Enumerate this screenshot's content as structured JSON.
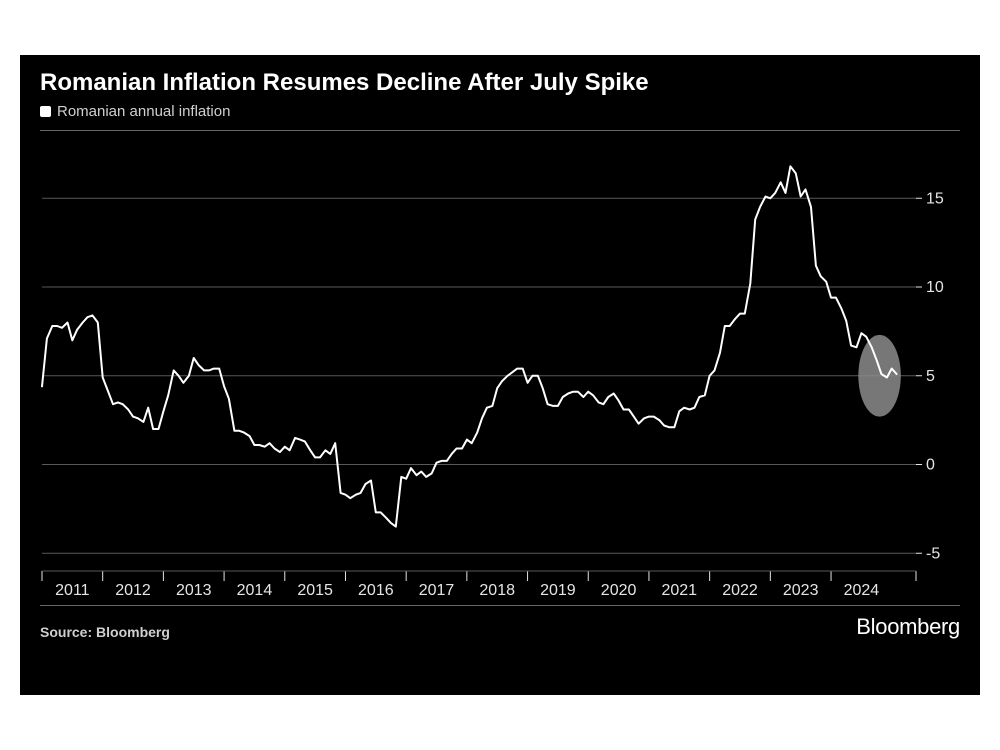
{
  "title": "Romanian Inflation Resumes Decline After July Spike",
  "legend": {
    "label": "Romanian annual inflation",
    "marker_color": "#ffffff"
  },
  "source": "Source: Bloomberg",
  "brand": "Bloomberg",
  "chart": {
    "type": "line",
    "background_color": "#000000",
    "line_color": "#ffffff",
    "line_width": 2,
    "grid_color": "#595959",
    "tick_font_size": 16,
    "tick_color": "#e5e5e5",
    "x": {
      "min": 2010.5,
      "max": 2024.9,
      "major_ticks": [
        2011,
        2012,
        2013,
        2014,
        2015,
        2016,
        2017,
        2018,
        2019,
        2020,
        2021,
        2022,
        2023,
        2024
      ],
      "tick_len": 8
    },
    "y": {
      "min": -6,
      "max": 18,
      "ticks": [
        -5,
        0,
        5,
        10,
        15
      ],
      "gridlines": [
        -5,
        0,
        5,
        10,
        15
      ],
      "tick_side": "right"
    },
    "highlight": {
      "cx_year": 2024.3,
      "cy_val": 5.0,
      "rx_years": 0.35,
      "ry_val": 2.3,
      "fill": "#8c8c8c",
      "opacity": 0.85
    },
    "series": [
      {
        "x": 2010.5,
        "y": 4.4
      },
      {
        "x": 2010.58,
        "y": 7.1
      },
      {
        "x": 2010.67,
        "y": 7.8
      },
      {
        "x": 2010.75,
        "y": 7.8
      },
      {
        "x": 2010.83,
        "y": 7.7
      },
      {
        "x": 2010.92,
        "y": 8.0
      },
      {
        "x": 2011.0,
        "y": 7.0
      },
      {
        "x": 2011.08,
        "y": 7.6
      },
      {
        "x": 2011.17,
        "y": 8.0
      },
      {
        "x": 2011.25,
        "y": 8.3
      },
      {
        "x": 2011.33,
        "y": 8.4
      },
      {
        "x": 2011.42,
        "y": 8.0
      },
      {
        "x": 2011.5,
        "y": 4.9
      },
      {
        "x": 2011.58,
        "y": 4.2
      },
      {
        "x": 2011.67,
        "y": 3.4
      },
      {
        "x": 2011.75,
        "y": 3.5
      },
      {
        "x": 2011.83,
        "y": 3.4
      },
      {
        "x": 2011.92,
        "y": 3.1
      },
      {
        "x": 2012.0,
        "y": 2.7
      },
      {
        "x": 2012.08,
        "y": 2.6
      },
      {
        "x": 2012.17,
        "y": 2.4
      },
      {
        "x": 2012.25,
        "y": 3.2
      },
      {
        "x": 2012.33,
        "y": 2.0
      },
      {
        "x": 2012.42,
        "y": 2.0
      },
      {
        "x": 2012.5,
        "y": 3.0
      },
      {
        "x": 2012.58,
        "y": 3.9
      },
      {
        "x": 2012.67,
        "y": 5.3
      },
      {
        "x": 2012.75,
        "y": 5.0
      },
      {
        "x": 2012.83,
        "y": 4.6
      },
      {
        "x": 2012.92,
        "y": 5.0
      },
      {
        "x": 2013.0,
        "y": 6.0
      },
      {
        "x": 2013.08,
        "y": 5.6
      },
      {
        "x": 2013.17,
        "y": 5.3
      },
      {
        "x": 2013.25,
        "y": 5.3
      },
      {
        "x": 2013.33,
        "y": 5.4
      },
      {
        "x": 2013.42,
        "y": 5.4
      },
      {
        "x": 2013.5,
        "y": 4.4
      },
      {
        "x": 2013.58,
        "y": 3.7
      },
      {
        "x": 2013.67,
        "y": 1.9
      },
      {
        "x": 2013.75,
        "y": 1.9
      },
      {
        "x": 2013.83,
        "y": 1.8
      },
      {
        "x": 2013.92,
        "y": 1.6
      },
      {
        "x": 2014.0,
        "y": 1.1
      },
      {
        "x": 2014.08,
        "y": 1.1
      },
      {
        "x": 2014.17,
        "y": 1.0
      },
      {
        "x": 2014.25,
        "y": 1.2
      },
      {
        "x": 2014.33,
        "y": 0.9
      },
      {
        "x": 2014.42,
        "y": 0.7
      },
      {
        "x": 2014.5,
        "y": 1.0
      },
      {
        "x": 2014.58,
        "y": 0.8
      },
      {
        "x": 2014.67,
        "y": 1.5
      },
      {
        "x": 2014.75,
        "y": 1.4
      },
      {
        "x": 2014.83,
        "y": 1.3
      },
      {
        "x": 2014.92,
        "y": 0.8
      },
      {
        "x": 2015.0,
        "y": 0.4
      },
      {
        "x": 2015.08,
        "y": 0.4
      },
      {
        "x": 2015.17,
        "y": 0.8
      },
      {
        "x": 2015.25,
        "y": 0.6
      },
      {
        "x": 2015.33,
        "y": 1.2
      },
      {
        "x": 2015.42,
        "y": -1.6
      },
      {
        "x": 2015.5,
        "y": -1.7
      },
      {
        "x": 2015.58,
        "y": -1.9
      },
      {
        "x": 2015.67,
        "y": -1.7
      },
      {
        "x": 2015.75,
        "y": -1.6
      },
      {
        "x": 2015.83,
        "y": -1.1
      },
      {
        "x": 2015.92,
        "y": -0.9
      },
      {
        "x": 2016.0,
        "y": -2.7
      },
      {
        "x": 2016.08,
        "y": -2.7
      },
      {
        "x": 2016.17,
        "y": -3.0
      },
      {
        "x": 2016.25,
        "y": -3.3
      },
      {
        "x": 2016.33,
        "y": -3.5
      },
      {
        "x": 2016.42,
        "y": -0.7
      },
      {
        "x": 2016.5,
        "y": -0.8
      },
      {
        "x": 2016.58,
        "y": -0.2
      },
      {
        "x": 2016.67,
        "y": -0.6
      },
      {
        "x": 2016.75,
        "y": -0.4
      },
      {
        "x": 2016.83,
        "y": -0.7
      },
      {
        "x": 2016.92,
        "y": -0.5
      },
      {
        "x": 2017.0,
        "y": 0.1
      },
      {
        "x": 2017.08,
        "y": 0.2
      },
      {
        "x": 2017.17,
        "y": 0.2
      },
      {
        "x": 2017.25,
        "y": 0.6
      },
      {
        "x": 2017.33,
        "y": 0.9
      },
      {
        "x": 2017.42,
        "y": 0.9
      },
      {
        "x": 2017.5,
        "y": 1.4
      },
      {
        "x": 2017.58,
        "y": 1.2
      },
      {
        "x": 2017.67,
        "y": 1.8
      },
      {
        "x": 2017.75,
        "y": 2.6
      },
      {
        "x": 2017.83,
        "y": 3.2
      },
      {
        "x": 2017.92,
        "y": 3.3
      },
      {
        "x": 2018.0,
        "y": 4.3
      },
      {
        "x": 2018.08,
        "y": 4.7
      },
      {
        "x": 2018.17,
        "y": 5.0
      },
      {
        "x": 2018.25,
        "y": 5.2
      },
      {
        "x": 2018.33,
        "y": 5.4
      },
      {
        "x": 2018.42,
        "y": 5.4
      },
      {
        "x": 2018.5,
        "y": 4.6
      },
      {
        "x": 2018.58,
        "y": 5.0
      },
      {
        "x": 2018.67,
        "y": 5.0
      },
      {
        "x": 2018.75,
        "y": 4.3
      },
      {
        "x": 2018.83,
        "y": 3.4
      },
      {
        "x": 2018.92,
        "y": 3.3
      },
      {
        "x": 2019.0,
        "y": 3.3
      },
      {
        "x": 2019.08,
        "y": 3.8
      },
      {
        "x": 2019.17,
        "y": 4.0
      },
      {
        "x": 2019.25,
        "y": 4.1
      },
      {
        "x": 2019.33,
        "y": 4.1
      },
      {
        "x": 2019.42,
        "y": 3.8
      },
      {
        "x": 2019.5,
        "y": 4.1
      },
      {
        "x": 2019.58,
        "y": 3.9
      },
      {
        "x": 2019.67,
        "y": 3.5
      },
      {
        "x": 2019.75,
        "y": 3.4
      },
      {
        "x": 2019.83,
        "y": 3.8
      },
      {
        "x": 2019.92,
        "y": 4.0
      },
      {
        "x": 2020.0,
        "y": 3.6
      },
      {
        "x": 2020.08,
        "y": 3.1
      },
      {
        "x": 2020.17,
        "y": 3.1
      },
      {
        "x": 2020.25,
        "y": 2.7
      },
      {
        "x": 2020.33,
        "y": 2.3
      },
      {
        "x": 2020.42,
        "y": 2.6
      },
      {
        "x": 2020.5,
        "y": 2.7
      },
      {
        "x": 2020.58,
        "y": 2.7
      },
      {
        "x": 2020.67,
        "y": 2.5
      },
      {
        "x": 2020.75,
        "y": 2.2
      },
      {
        "x": 2020.83,
        "y": 2.1
      },
      {
        "x": 2020.92,
        "y": 2.1
      },
      {
        "x": 2021.0,
        "y": 3.0
      },
      {
        "x": 2021.08,
        "y": 3.2
      },
      {
        "x": 2021.17,
        "y": 3.1
      },
      {
        "x": 2021.25,
        "y": 3.2
      },
      {
        "x": 2021.33,
        "y": 3.8
      },
      {
        "x": 2021.42,
        "y": 3.9
      },
      {
        "x": 2021.5,
        "y": 5.0
      },
      {
        "x": 2021.58,
        "y": 5.3
      },
      {
        "x": 2021.67,
        "y": 6.3
      },
      {
        "x": 2021.75,
        "y": 7.8
      },
      {
        "x": 2021.83,
        "y": 7.8
      },
      {
        "x": 2021.92,
        "y": 8.2
      },
      {
        "x": 2022.0,
        "y": 8.5
      },
      {
        "x": 2022.08,
        "y": 8.5
      },
      {
        "x": 2022.17,
        "y": 10.2
      },
      {
        "x": 2022.25,
        "y": 13.8
      },
      {
        "x": 2022.33,
        "y": 14.5
      },
      {
        "x": 2022.42,
        "y": 15.1
      },
      {
        "x": 2022.5,
        "y": 15.0
      },
      {
        "x": 2022.58,
        "y": 15.3
      },
      {
        "x": 2022.67,
        "y": 15.9
      },
      {
        "x": 2022.75,
        "y": 15.3
      },
      {
        "x": 2022.83,
        "y": 16.8
      },
      {
        "x": 2022.92,
        "y": 16.4
      },
      {
        "x": 2023.0,
        "y": 15.1
      },
      {
        "x": 2023.08,
        "y": 15.5
      },
      {
        "x": 2023.17,
        "y": 14.5
      },
      {
        "x": 2023.25,
        "y": 11.2
      },
      {
        "x": 2023.33,
        "y": 10.6
      },
      {
        "x": 2023.42,
        "y": 10.3
      },
      {
        "x": 2023.5,
        "y": 9.4
      },
      {
        "x": 2023.58,
        "y": 9.4
      },
      {
        "x": 2023.67,
        "y": 8.8
      },
      {
        "x": 2023.75,
        "y": 8.1
      },
      {
        "x": 2023.83,
        "y": 6.7
      },
      {
        "x": 2023.92,
        "y": 6.6
      },
      {
        "x": 2024.0,
        "y": 7.4
      },
      {
        "x": 2024.08,
        "y": 7.2
      },
      {
        "x": 2024.17,
        "y": 6.6
      },
      {
        "x": 2024.25,
        "y": 5.9
      },
      {
        "x": 2024.33,
        "y": 5.1
      },
      {
        "x": 2024.42,
        "y": 4.9
      },
      {
        "x": 2024.5,
        "y": 5.4
      },
      {
        "x": 2024.58,
        "y": 5.1
      }
    ]
  }
}
